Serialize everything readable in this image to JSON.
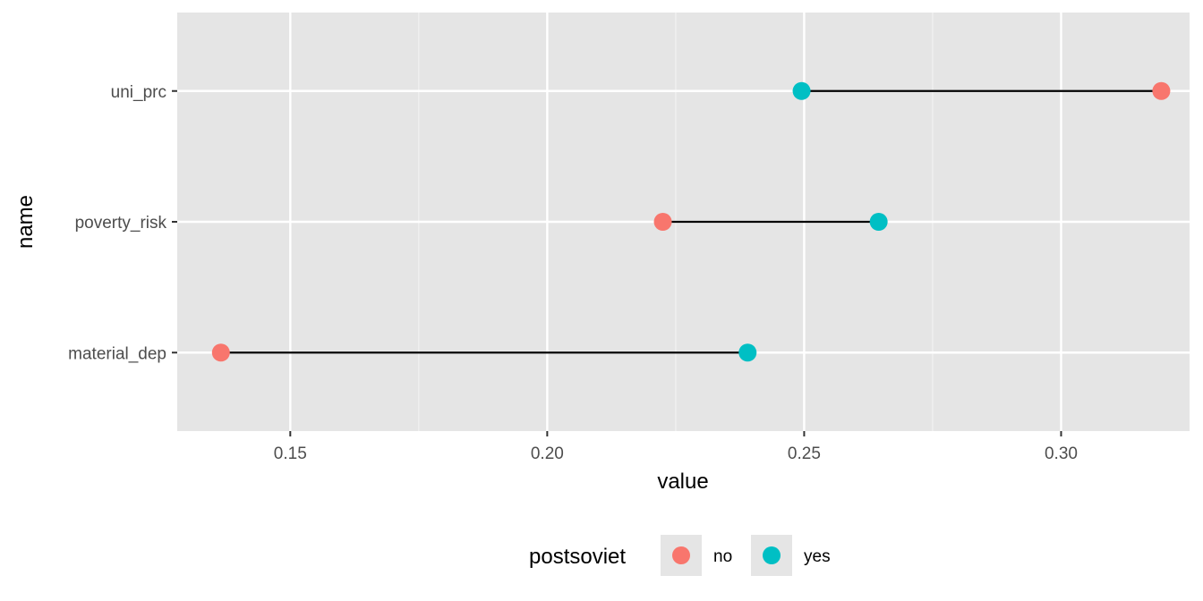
{
  "chart_data": {
    "type": "dumbbell",
    "title": "",
    "xlabel": "value",
    "ylabel": "name",
    "xlim": [
      0.128,
      0.325
    ],
    "x_ticks": [
      0.15,
      0.2,
      0.25,
      0.3
    ],
    "x_tick_labels": [
      "0.15",
      "0.20",
      "0.25",
      "0.30"
    ],
    "categories": [
      "uni_prc",
      "poverty_risk",
      "material_dep"
    ],
    "series": [
      {
        "name": "no",
        "color": "#F8766D",
        "values": [
          0.3195,
          0.2225,
          0.1365
        ]
      },
      {
        "name": "yes",
        "color": "#00BFC4",
        "values": [
          0.2495,
          0.2645,
          0.239
        ]
      }
    ],
    "legend": {
      "title": "postsoviet",
      "position": "bottom"
    },
    "grid": true,
    "background": "#E5E5E5",
    "segment_color": "#000000"
  }
}
